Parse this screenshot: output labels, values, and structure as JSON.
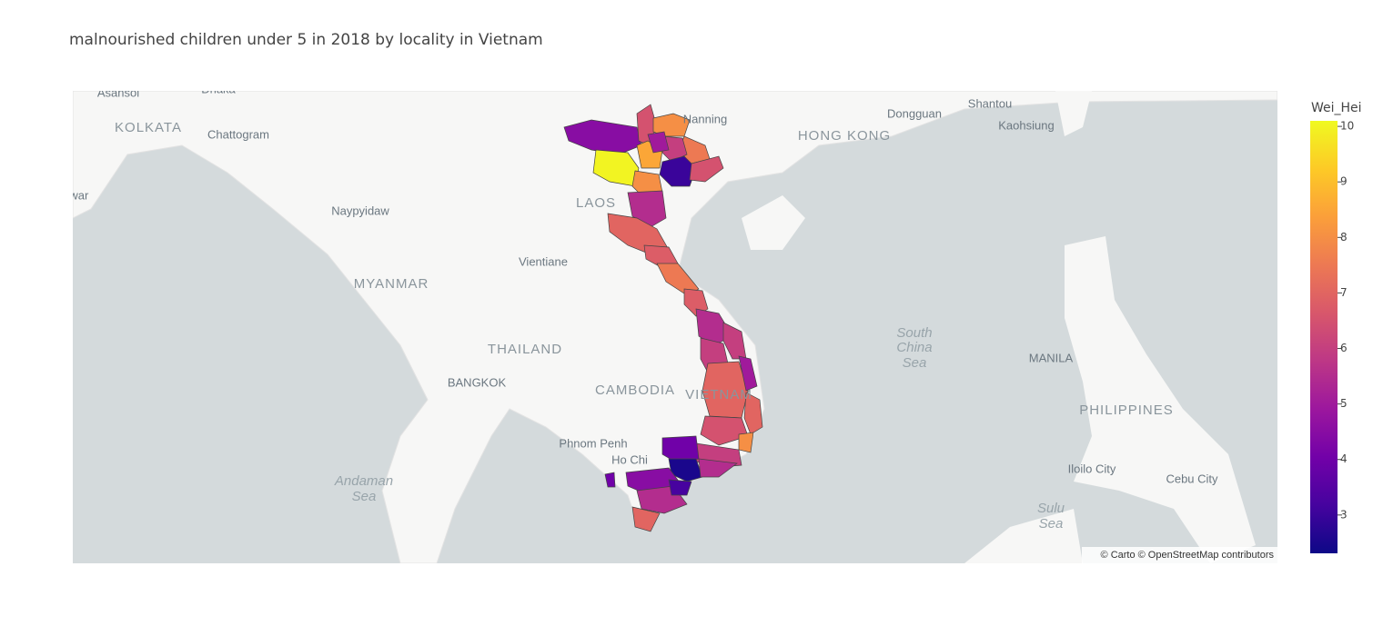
{
  "chart_data": {
    "type": "choropleth",
    "title": "malnourished children under 5 in 2018 by locality in Vietnam",
    "colorbar_title": "Wei_Hei",
    "clim": [
      2.31,
      10.1
    ],
    "ticks": [
      3,
      4,
      5,
      6,
      7,
      8,
      9,
      10
    ],
    "colorscale": [
      "#0d0887",
      "#46039f",
      "#7201a8",
      "#9c179e",
      "#bd3786",
      "#d8576b",
      "#ed7953",
      "#fb9f3a",
      "#fdca26",
      "#f0f921"
    ],
    "values": [
      4.5,
      10,
      6.5,
      8,
      7.5,
      8.5,
      6,
      3,
      6.5,
      8,
      5.5,
      7,
      6.8,
      7.5,
      6.8,
      5.5,
      6,
      6,
      7,
      5,
      6.5,
      7,
      8,
      6,
      4,
      2.5,
      5.5,
      4.5,
      5.5,
      7,
      4,
      3.2,
      5
    ],
    "map_labels": [
      "Asansol",
      "Dhaka",
      "KOLKATA",
      "Chattogram",
      "shwar",
      "Naypyidaw",
      "MYANMAR",
      "LAOS",
      "Vientiane",
      "THAILAND",
      "BANGKOK",
      "CAMBODIA",
      "Phnom Penh",
      "Ho Chi",
      "VIETNAM",
      "Andaman",
      "Sea",
      "South",
      "China",
      "Sea",
      "MANILA",
      "PHILIPPINES",
      "Iloilo City",
      "Cebu City",
      "Sulu",
      "Sea",
      "Nanning",
      "Dongguan",
      "Shantou",
      "HONG KONG",
      "Kaohsiung"
    ],
    "attribution": "© Carto © OpenStreetMap contributors"
  }
}
